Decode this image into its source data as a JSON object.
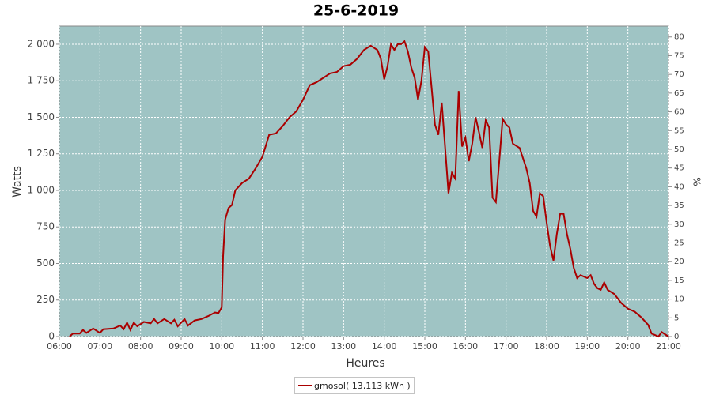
{
  "chart_data": {
    "type": "line",
    "title": "25-6-2019",
    "x_label": "Heures",
    "y_label": "Watts",
    "y2_label": "%",
    "xlim": [
      "06:00",
      "21:00"
    ],
    "xticks": [
      "06:00",
      "07:00",
      "08:00",
      "09:00",
      "10:00",
      "11:00",
      "12:00",
      "13:00",
      "14:00",
      "15:00",
      "16:00",
      "17:00",
      "18:00",
      "19:00",
      "20:00",
      "21:00"
    ],
    "ylim": [
      0,
      2124
    ],
    "yticks": [
      0,
      250,
      500,
      750,
      {
        "value": 1000,
        "label": "1 000"
      },
      {
        "value": 1250,
        "label": "1 250"
      },
      {
        "value": 1500,
        "label": "1 500"
      },
      {
        "value": 1750,
        "label": "1 750"
      },
      {
        "value": 2000,
        "label": "2 000"
      }
    ],
    "y2lim": [
      0,
      82.9
    ],
    "y2ticks": [
      0,
      5,
      10,
      15,
      20,
      25,
      30,
      35,
      40,
      45,
      50,
      55,
      60,
      65,
      70,
      75,
      80
    ],
    "grid": true,
    "legend": "bottom",
    "background": "#9fc4c4",
    "x": [
      "06:15",
      "06:20",
      "06:30",
      "06:35",
      "06:40",
      "06:50",
      "07:00",
      "07:05",
      "07:20",
      "07:30",
      "07:35",
      "07:40",
      "07:45",
      "07:50",
      "07:55",
      "08:05",
      "08:15",
      "08:20",
      "08:25",
      "08:35",
      "08:45",
      "08:50",
      "08:55",
      "09:05",
      "09:10",
      "09:20",
      "09:30",
      "09:40",
      "09:50",
      "09:55",
      "10:00",
      "10:02",
      "10:05",
      "10:10",
      "10:15",
      "10:20",
      "10:30",
      "10:40",
      "10:50",
      "11:00",
      "11:10",
      "11:20",
      "11:30",
      "11:40",
      "11:50",
      "12:00",
      "12:10",
      "12:20",
      "12:30",
      "12:40",
      "12:50",
      "13:00",
      "13:10",
      "13:20",
      "13:30",
      "13:40",
      "13:50",
      "13:55",
      "14:00",
      "14:05",
      "14:10",
      "14:15",
      "14:20",
      "14:25",
      "14:30",
      "14:35",
      "14:40",
      "14:45",
      "14:50",
      "14:55",
      "15:00",
      "15:05",
      "15:10",
      "15:15",
      "15:20",
      "15:25",
      "15:30",
      "15:35",
      "15:40",
      "15:45",
      "15:50",
      "15:55",
      "16:00",
      "16:05",
      "16:10",
      "16:15",
      "16:20",
      "16:25",
      "16:30",
      "16:35",
      "16:40",
      "16:45",
      "16:50",
      "16:55",
      "17:00",
      "17:05",
      "17:10",
      "17:20",
      "17:30",
      "17:35",
      "17:40",
      "17:45",
      "17:50",
      "17:55",
      "18:00",
      "18:05",
      "18:10",
      "18:15",
      "18:20",
      "18:25",
      "18:30",
      "18:35",
      "18:40",
      "18:45",
      "18:50",
      "19:00",
      "19:05",
      "19:10",
      "19:15",
      "19:20",
      "19:25",
      "19:30",
      "19:40",
      "19:50",
      "20:00",
      "20:10",
      "20:20",
      "20:30",
      "20:35",
      "20:40",
      "20:45",
      "20:50",
      "21:00"
    ],
    "series": [
      {
        "name": "gmosol( 13,113 kWh )",
        "color": "#aa0000",
        "values": [
          0,
          20,
          20,
          45,
          25,
          55,
          25,
          50,
          55,
          75,
          50,
          95,
          45,
          95,
          70,
          100,
          90,
          120,
          90,
          120,
          90,
          115,
          70,
          120,
          75,
          110,
          120,
          140,
          165,
          160,
          200,
          550,
          800,
          880,
          900,
          1000,
          1050,
          1080,
          1150,
          1230,
          1380,
          1390,
          1440,
          1500,
          1540,
          1620,
          1720,
          1740,
          1770,
          1800,
          1810,
          1850,
          1860,
          1900,
          1960,
          1990,
          1960,
          1900,
          1760,
          1850,
          2000,
          1960,
          2000,
          2000,
          2020,
          1950,
          1840,
          1770,
          1620,
          1750,
          1980,
          1950,
          1700,
          1450,
          1380,
          1600,
          1290,
          980,
          1120,
          1080,
          1680,
          1300,
          1360,
          1200,
          1320,
          1500,
          1400,
          1290,
          1480,
          1430,
          950,
          920,
          1200,
          1490,
          1450,
          1430,
          1320,
          1290,
          1150,
          1050,
          860,
          820,
          980,
          960,
          780,
          620,
          520,
          700,
          840,
          840,
          700,
          600,
          470,
          400,
          420,
          400,
          420,
          360,
          330,
          320,
          370,
          320,
          290,
          230,
          190,
          170,
          130,
          80,
          20,
          10,
          0,
          30,
          0
        ]
      }
    ]
  }
}
